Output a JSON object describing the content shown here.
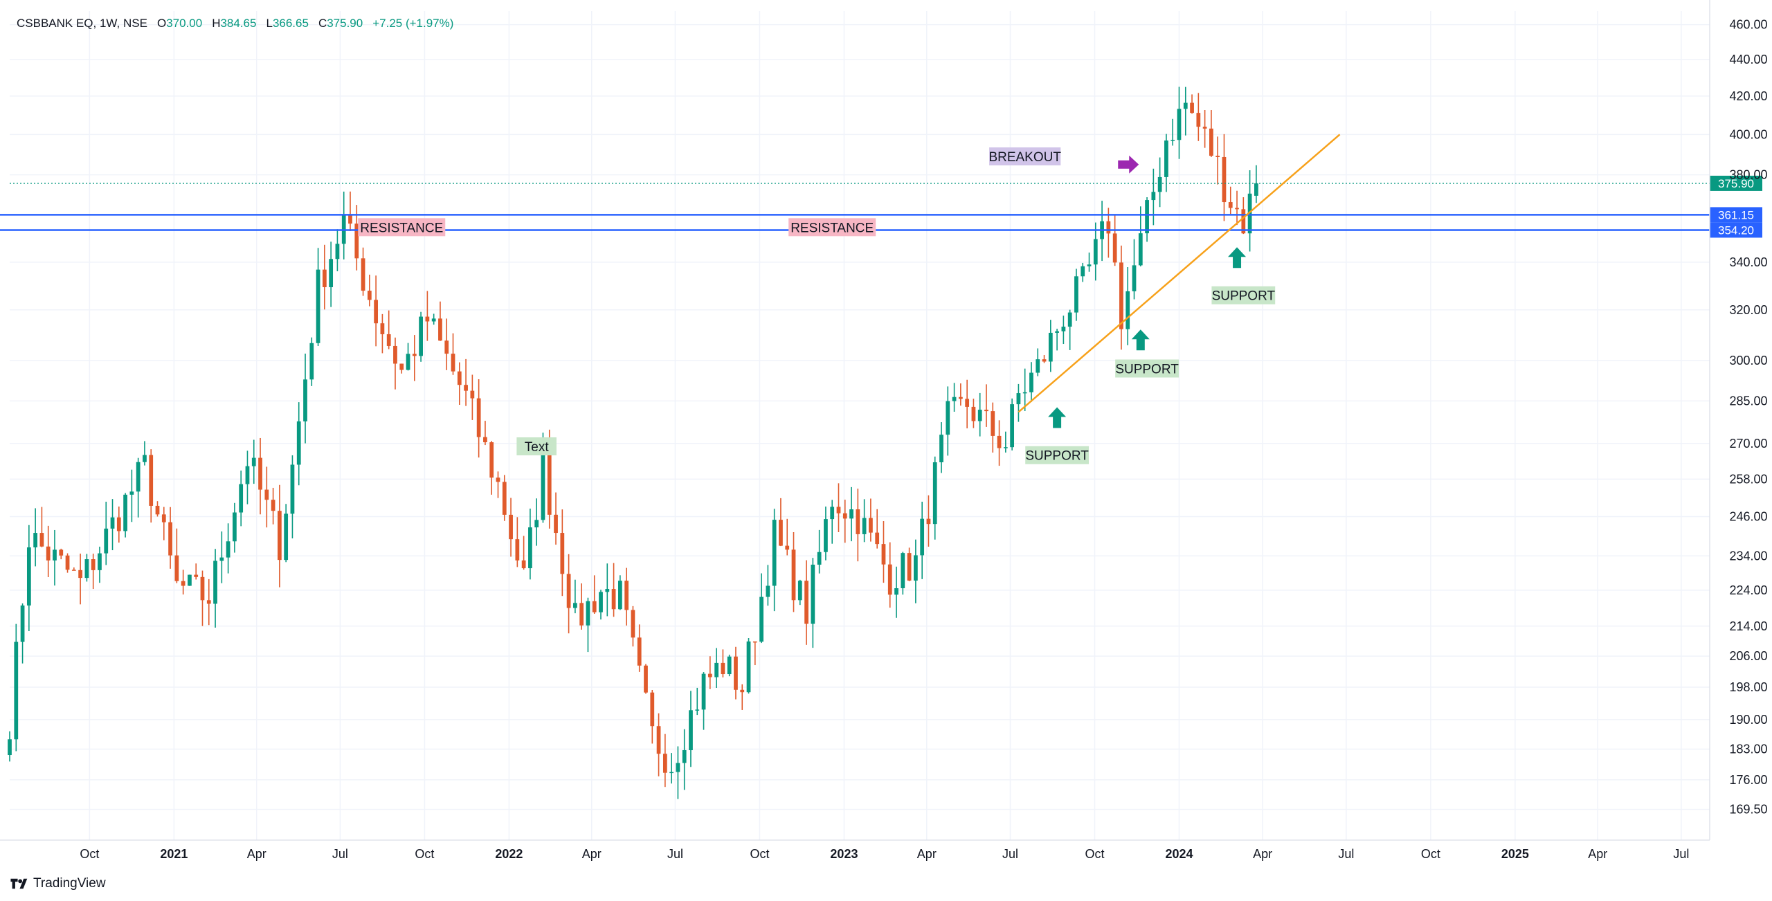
{
  "legend": {
    "symbol": "CSBBANK EQ, 1W, NSE",
    "open_label": "O",
    "open": "370.00",
    "high_label": "H",
    "high": "384.65",
    "low_label": "L",
    "low": "366.65",
    "close_label": "C",
    "close": "375.90",
    "change": "+7.25 (+1.97%)"
  },
  "brand": "TradingView",
  "colors": {
    "up": "#089981",
    "down": "#e05a2b",
    "grid": "#f0f3fa",
    "level_line": "#2962ff",
    "trendline": "#f7a11a",
    "price_tag": "#089981",
    "resistance_bg": "#f7b6c4",
    "support_bg": "#c8e6c9",
    "support_arrow": "#089981",
    "breakout_bg": "#d1c4e9",
    "breakout_arrow": "#9c27b0",
    "text_note_bg": "#c8e6c9"
  },
  "chart_data": {
    "type": "candlestick",
    "interval": "1W",
    "y_scale": "log",
    "grid": true,
    "x_ticks": [
      "Oct",
      "2021",
      "Apr",
      "Jul",
      "Oct",
      "2022",
      "Apr",
      "Jul",
      "Oct",
      "2023",
      "Apr",
      "Jul",
      "Oct",
      "2024",
      "Apr",
      "Jul",
      "Oct",
      "2025",
      "Apr",
      "Jul"
    ],
    "x_tick_dates": [
      "2020-10-01",
      "2021-01-01",
      "2021-04-01",
      "2021-07-01",
      "2021-10-01",
      "2022-01-01",
      "2022-04-01",
      "2022-07-01",
      "2022-10-01",
      "2023-01-01",
      "2023-04-01",
      "2023-07-01",
      "2023-10-01",
      "2024-01-01",
      "2024-04-01",
      "2024-07-01",
      "2024-10-01",
      "2025-01-01",
      "2025-04-01",
      "2025-07-01"
    ],
    "x_range": [
      "2020-07-06",
      "2025-08-01"
    ],
    "y_ticks": [
      "460.00",
      "440.00",
      "420.00",
      "400.00",
      "380.00",
      "340.00",
      "320.00",
      "300.00",
      "285.00",
      "270.00",
      "258.00",
      "246.00",
      "234.00",
      "224.00",
      "214.00",
      "206.00",
      "198.00",
      "190.00",
      "183.00",
      "176.00",
      "169.50"
    ],
    "y_range": [
      163,
      468
    ],
    "price_line": {
      "value": 375.9,
      "label": "375.90"
    },
    "horizontal_levels": [
      {
        "value": 361.15,
        "label": "361.15"
      },
      {
        "value": 354.2,
        "label": "354.20"
      }
    ],
    "trendline": {
      "start": [
        "2023-07-10",
        281
      ],
      "end": [
        "2024-06-24",
        400
      ]
    },
    "annotations": [
      {
        "type": "label",
        "text": "RESISTANCE",
        "at": [
          "2021-09-06",
          355.5
        ]
      },
      {
        "type": "label",
        "text": "RESISTANCE",
        "at": [
          "2022-12-19",
          355.5
        ]
      },
      {
        "type": "label",
        "text": "BREAKOUT",
        "at": [
          "2023-07-17",
          389
        ]
      },
      {
        "type": "arrow-right",
        "label": "breakout-arrow",
        "at": [
          "2023-11-06",
          385
        ]
      },
      {
        "type": "arrow-up",
        "label": "support-arrow",
        "at": [
          "2023-08-21",
          279
        ]
      },
      {
        "type": "label",
        "text": "SUPPORT",
        "at": [
          "2023-08-21",
          266
        ]
      },
      {
        "type": "arrow-up",
        "label": "support-arrow",
        "at": [
          "2023-11-20",
          308
        ]
      },
      {
        "type": "label",
        "text": "SUPPORT",
        "at": [
          "2023-11-27",
          297
        ]
      },
      {
        "type": "arrow-up",
        "label": "support-arrow",
        "at": [
          "2024-03-04",
          342
        ]
      },
      {
        "type": "label",
        "text": "SUPPORT",
        "at": [
          "2024-03-11",
          326
        ]
      },
      {
        "type": "label",
        "text": "Text",
        "at": [
          "2022-01-31",
          269
        ]
      }
    ],
    "pivots": [
      {
        "date": "2020-07-06",
        "price": 190
      },
      {
        "date": "2020-07-27",
        "price": 240
      },
      {
        "date": "2020-09-21",
        "price": 226
      },
      {
        "date": "2020-11-30",
        "price": 262
      },
      {
        "date": "2021-01-04",
        "price": 225
      },
      {
        "date": "2021-02-08",
        "price": 222
      },
      {
        "date": "2021-03-22",
        "price": 265
      },
      {
        "date": "2021-04-26",
        "price": 238
      },
      {
        "date": "2021-05-10",
        "price": 262
      },
      {
        "date": "2021-06-07",
        "price": 330
      },
      {
        "date": "2021-07-05",
        "price": 358
      },
      {
        "date": "2021-08-09",
        "price": 318
      },
      {
        "date": "2021-09-06",
        "price": 296
      },
      {
        "date": "2021-10-04",
        "price": 316
      },
      {
        "date": "2021-11-15",
        "price": 286
      },
      {
        "date": "2021-12-20",
        "price": 256
      },
      {
        "date": "2022-01-17",
        "price": 227
      },
      {
        "date": "2022-02-07",
        "price": 262
      },
      {
        "date": "2022-03-14",
        "price": 215
      },
      {
        "date": "2022-04-11",
        "price": 224
      },
      {
        "date": "2022-05-02",
        "price": 222
      },
      {
        "date": "2022-06-06",
        "price": 186
      },
      {
        "date": "2022-06-27",
        "price": 180
      },
      {
        "date": "2022-08-01",
        "price": 199
      },
      {
        "date": "2022-08-22",
        "price": 204
      },
      {
        "date": "2022-09-12",
        "price": 198
      },
      {
        "date": "2022-10-17",
        "price": 240
      },
      {
        "date": "2022-11-21",
        "price": 218
      },
      {
        "date": "2022-12-19",
        "price": 252
      },
      {
        "date": "2023-01-16",
        "price": 246
      },
      {
        "date": "2023-02-20",
        "price": 228
      },
      {
        "date": "2023-03-20",
        "price": 232
      },
      {
        "date": "2023-04-24",
        "price": 278
      },
      {
        "date": "2023-05-15",
        "price": 284
      },
      {
        "date": "2023-06-05",
        "price": 276
      },
      {
        "date": "2023-06-26",
        "price": 270
      },
      {
        "date": "2023-07-10",
        "price": 287
      },
      {
        "date": "2023-07-31",
        "price": 297
      },
      {
        "date": "2023-08-28",
        "price": 318
      },
      {
        "date": "2023-09-18",
        "price": 330
      },
      {
        "date": "2023-10-16",
        "price": 358
      },
      {
        "date": "2023-10-30",
        "price": 318
      },
      {
        "date": "2023-11-20",
        "price": 348
      },
      {
        "date": "2023-12-18",
        "price": 398
      },
      {
        "date": "2024-01-08",
        "price": 416
      },
      {
        "date": "2024-02-05",
        "price": 392
      },
      {
        "date": "2024-02-26",
        "price": 368
      },
      {
        "date": "2024-03-11",
        "price": 358
      },
      {
        "date": "2024-03-25",
        "price": 376
      }
    ],
    "last_candle": {
      "date": "2024-03-25",
      "open": 370.0,
      "high": 384.65,
      "low": 366.65,
      "close": 375.9
    }
  }
}
